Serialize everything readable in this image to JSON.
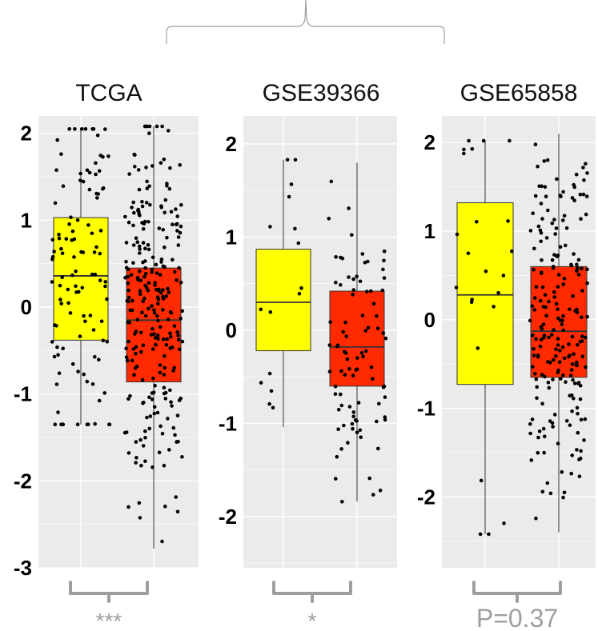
{
  "colors": {
    "panel_bg": "#ebebeb",
    "grid": "#ffffff",
    "group1_fill": "#ffff00",
    "group2_fill": "#ff2a00",
    "outline": "#000000",
    "whisker": "#333333",
    "point": "#000000",
    "bracket": "#9e9e9e"
  },
  "chart_data": [
    {
      "type": "box",
      "title": "TCGA",
      "ylim": [
        -3,
        2.2
      ],
      "yticks": [
        2,
        1,
        0,
        -1,
        -2,
        -3
      ],
      "grid": true,
      "significance": "***",
      "boxes": [
        {
          "color": "group1",
          "min": -1.35,
          "q1": -0.38,
          "median": 0.36,
          "q3": 1.03,
          "max": 2.05,
          "n_points": 110
        },
        {
          "color": "group2",
          "min": -2.78,
          "q1": -0.86,
          "median": -0.15,
          "q3": 0.45,
          "max": 2.08,
          "n_points": 260
        }
      ]
    },
    {
      "type": "box",
      "title": "GSE39366",
      "ylim": [
        -2.55,
        2.3
      ],
      "yticks": [
        2,
        1,
        0,
        -1,
        -2
      ],
      "grid": true,
      "significance": "*",
      "boxes": [
        {
          "color": "group1",
          "min": -1.04,
          "q1": -0.22,
          "median": 0.3,
          "q3": 0.87,
          "max": 1.83,
          "n_points": 16
        },
        {
          "color": "group2",
          "min": -1.84,
          "q1": -0.6,
          "median": -0.18,
          "q3": 0.42,
          "max": 1.8,
          "n_points": 90
        }
      ]
    },
    {
      "type": "box",
      "title": "GSE65858",
      "ylim": [
        -2.8,
        2.3
      ],
      "yticks": [
        2,
        1,
        0,
        -1,
        -2
      ],
      "grid": true,
      "significance": "P=0.37",
      "boxes": [
        {
          "color": "group1",
          "min": -2.42,
          "q1": -0.73,
          "median": 0.28,
          "q3": 1.32,
          "max": 2.02,
          "n_points": 24
        },
        {
          "color": "group2",
          "min": -2.4,
          "q1": -0.65,
          "median": -0.13,
          "q3": 0.6,
          "max": 2.1,
          "n_points": 210
        }
      ]
    }
  ]
}
